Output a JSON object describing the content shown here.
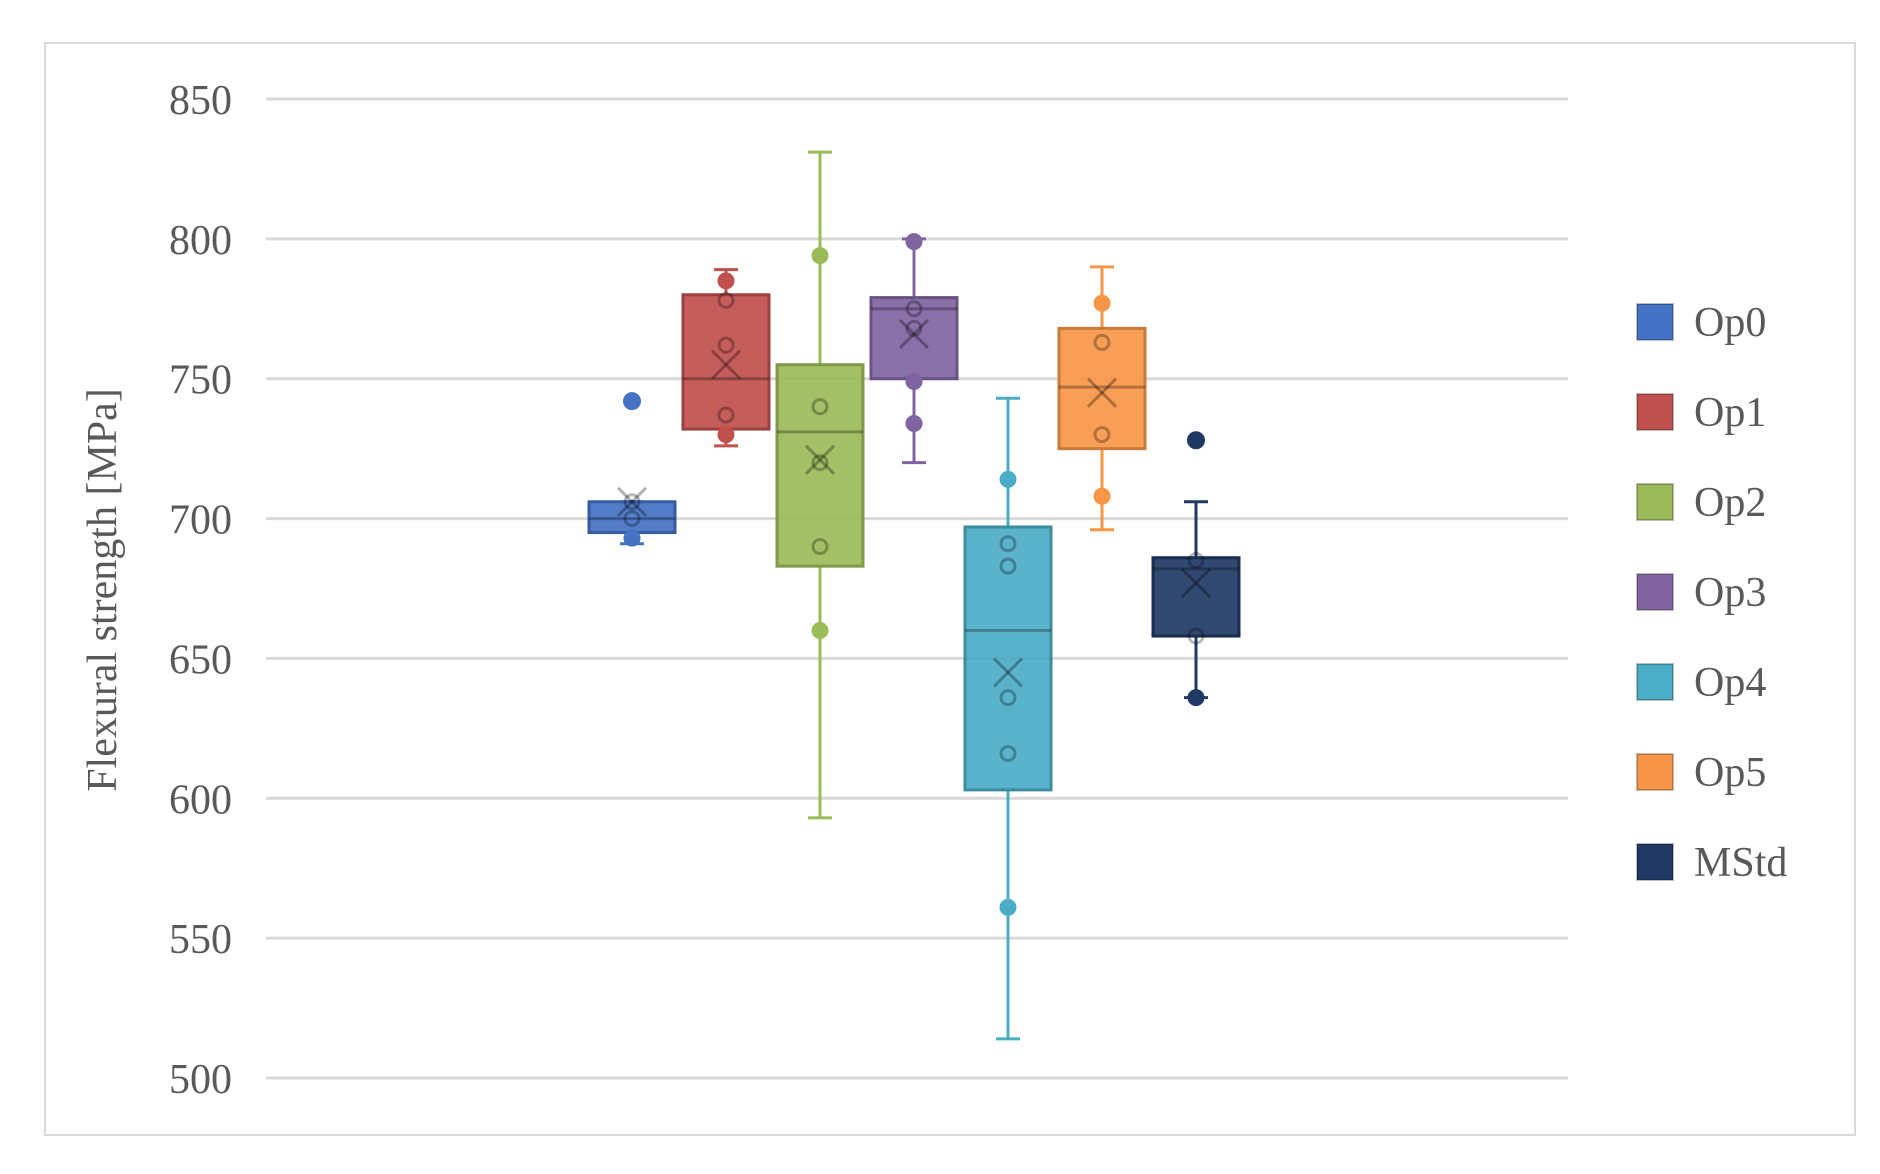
{
  "chart_data": {
    "type": "box",
    "title": "",
    "xlabel": "",
    "ylabel": "Flexural strength [MPa]",
    "ylim": [
      500,
      850
    ],
    "yticks": [
      500,
      550,
      600,
      650,
      700,
      750,
      800,
      850
    ],
    "grid": true,
    "legend_position": "right",
    "series": [
      {
        "name": "Op0",
        "color": "#4472c4",
        "whisker_low": 691,
        "q1": 695,
        "median": 700,
        "q3": 706,
        "whisker_high": 706,
        "mean": 706,
        "points": [
          693,
          700,
          706
        ],
        "outliers": [
          742
        ]
      },
      {
        "name": "Op1",
        "color": "#c0504d",
        "whisker_low": 726,
        "q1": 732,
        "median": 750,
        "q3": 780,
        "whisker_high": 789,
        "mean": 755,
        "points": [
          730,
          737,
          762,
          778,
          785
        ],
        "outliers": []
      },
      {
        "name": "Op2",
        "color": "#9bbb59",
        "whisker_low": 593,
        "q1": 683,
        "median": 731,
        "q3": 755,
        "whisker_high": 831,
        "mean": 721,
        "points": [
          660,
          690,
          720,
          740,
          794
        ],
        "outliers": []
      },
      {
        "name": "Op3",
        "color": "#8064a2",
        "whisker_low": 720,
        "q1": 750,
        "median": 775,
        "q3": 779,
        "whisker_high": 800,
        "mean": 766,
        "points": [
          734,
          749,
          768,
          775,
          799
        ],
        "outliers": []
      },
      {
        "name": "Op4",
        "color": "#4bacc6",
        "whisker_low": 514,
        "q1": 603,
        "median": 660,
        "q3": 697,
        "whisker_high": 743,
        "mean": 645,
        "points": [
          561,
          616,
          636,
          683,
          691,
          714
        ],
        "outliers": []
      },
      {
        "name": "Op5",
        "color": "#f79646",
        "whisker_low": 696,
        "q1": 725,
        "median": 747,
        "q3": 768,
        "whisker_high": 790,
        "mean": 745,
        "points": [
          708,
          730,
          763,
          777
        ],
        "outliers": []
      },
      {
        "name": "MStd",
        "color": "#1f3864",
        "whisker_low": 636,
        "q1": 658,
        "median": 682,
        "q3": 686,
        "whisker_high": 706,
        "mean": 677,
        "points": [
          636,
          658,
          685
        ],
        "outliers": [
          728
        ]
      }
    ]
  }
}
